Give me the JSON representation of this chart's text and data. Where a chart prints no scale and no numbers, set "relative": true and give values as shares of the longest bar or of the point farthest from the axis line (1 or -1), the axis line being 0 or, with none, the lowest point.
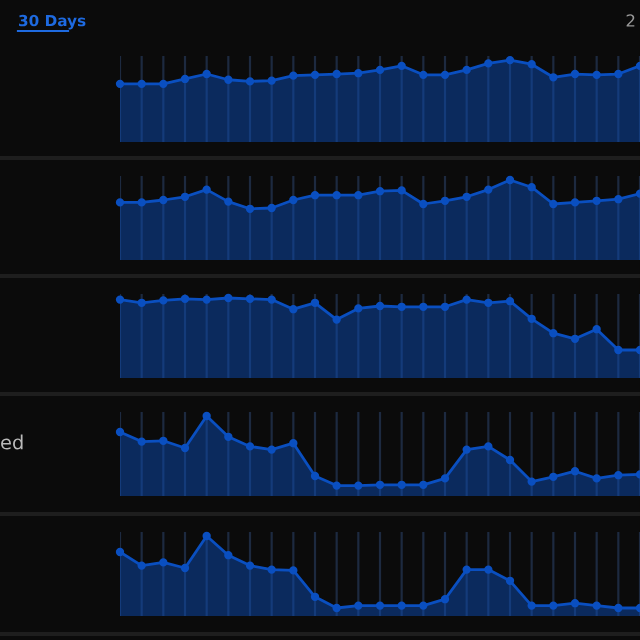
{
  "chart_data": [
    {
      "type": "area",
      "relative": true,
      "annotations": [
        "30 Days",
        "2"
      ],
      "categories": [
        null,
        null,
        null,
        null,
        null,
        null,
        null,
        null,
        null,
        null,
        null,
        null,
        null,
        null,
        null,
        null,
        null,
        null,
        null,
        null,
        null,
        null,
        null,
        null,
        null
      ],
      "grid": "x",
      "marker": "circle",
      "series": [
        {
          "color": "#0a4fc0",
          "values": [
            0.71,
            0.71,
            0.71,
            0.77,
            0.83,
            0.76,
            0.74,
            0.75,
            0.81,
            0.82,
            0.83,
            0.84,
            0.88,
            0.93,
            0.82,
            0.82,
            0.88,
            0.96,
            1.0,
            0.95,
            0.79,
            0.83,
            0.82,
            0.83,
            0.93
          ]
        }
      ]
    },
    {
      "type": "area",
      "relative": true,
      "categories": [
        null,
        null,
        null,
        null,
        null,
        null,
        null,
        null,
        null,
        null,
        null,
        null,
        null,
        null,
        null,
        null,
        null,
        null,
        null,
        null,
        null,
        null,
        null,
        null,
        null
      ],
      "grid": "x",
      "marker": "circle",
      "series": [
        {
          "color": "#0a4fc0",
          "values": [
            0.72,
            0.72,
            0.75,
            0.79,
            0.88,
            0.73,
            0.64,
            0.65,
            0.75,
            0.81,
            0.81,
            0.81,
            0.86,
            0.87,
            0.7,
            0.74,
            0.79,
            0.88,
            1.0,
            0.91,
            0.7,
            0.72,
            0.74,
            0.76,
            0.83
          ]
        }
      ]
    },
    {
      "type": "area",
      "relative": true,
      "categories": [
        null,
        null,
        null,
        null,
        null,
        null,
        null,
        null,
        null,
        null,
        null,
        null,
        null,
        null,
        null,
        null,
        null,
        null,
        null,
        null,
        null,
        null,
        null,
        null,
        null
      ],
      "grid": "x",
      "marker": "circle",
      "series": [
        {
          "color": "#0a4fc0",
          "values": [
            0.98,
            0.94,
            0.97,
            0.99,
            0.98,
            1.0,
            0.99,
            0.98,
            0.86,
            0.94,
            0.73,
            0.87,
            0.9,
            0.89,
            0.89,
            0.89,
            0.98,
            0.94,
            0.96,
            0.74,
            0.56,
            0.49,
            0.61,
            0.35,
            0.35
          ]
        }
      ]
    },
    {
      "type": "area",
      "relative": true,
      "ylabel": "ed",
      "categories": [
        null,
        null,
        null,
        null,
        null,
        null,
        null,
        null,
        null,
        null,
        null,
        null,
        null,
        null,
        null,
        null,
        null,
        null,
        null,
        null,
        null,
        null,
        null,
        null,
        null
      ],
      "grid": "x",
      "marker": "circle",
      "series": [
        {
          "color": "#0a4fc0",
          "values": [
            0.8,
            0.68,
            0.69,
            0.6,
            1.0,
            0.74,
            0.62,
            0.58,
            0.66,
            0.25,
            0.13,
            0.13,
            0.14,
            0.14,
            0.14,
            0.22,
            0.58,
            0.62,
            0.45,
            0.18,
            0.24,
            0.31,
            0.22,
            0.26,
            0.27
          ]
        }
      ]
    },
    {
      "type": "area",
      "relative": true,
      "categories": [
        null,
        null,
        null,
        null,
        null,
        null,
        null,
        null,
        null,
        null,
        null,
        null,
        null,
        null,
        null,
        null,
        null,
        null,
        null,
        null,
        null,
        null,
        null,
        null,
        null
      ],
      "grid": "x",
      "marker": "circle",
      "series": [
        {
          "color": "#0a4fc0",
          "values": [
            0.8,
            0.63,
            0.67,
            0.6,
            1.0,
            0.76,
            0.63,
            0.58,
            0.57,
            0.24,
            0.1,
            0.13,
            0.13,
            0.13,
            0.13,
            0.21,
            0.58,
            0.58,
            0.44,
            0.13,
            0.13,
            0.16,
            0.13,
            0.1,
            0.1
          ]
        }
      ]
    }
  ]
}
